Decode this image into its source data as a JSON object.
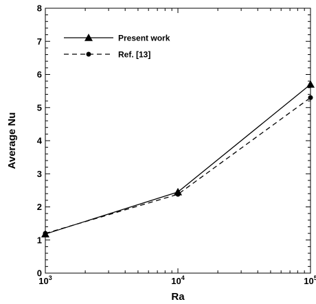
{
  "chart_data": {
    "type": "line",
    "title": "",
    "xlabel": "Ra",
    "ylabel": "Average Nu",
    "x_scale": "log",
    "xlim": [
      1000,
      100000
    ],
    "ylim": [
      0,
      8
    ],
    "x_ticks": [
      {
        "value": 1000,
        "base": "10",
        "exp": "3"
      },
      {
        "value": 10000,
        "base": "10",
        "exp": "4"
      },
      {
        "value": 100000,
        "base": "10",
        "exp": "5"
      }
    ],
    "y_ticks": [
      0,
      1,
      2,
      3,
      4,
      5,
      6,
      7,
      8
    ],
    "grid": false,
    "legend_position": "top-left",
    "series": [
      {
        "name": "Present work",
        "line_style": "solid",
        "marker": "triangle",
        "x": [
          1000,
          10000,
          100000
        ],
        "y": [
          1.18,
          2.45,
          5.7
        ]
      },
      {
        "name": "Ref. [13]",
        "line_style": "dashed",
        "marker": "circle",
        "x": [
          1000,
          10000,
          100000
        ],
        "y": [
          1.2,
          2.38,
          5.3
        ]
      }
    ]
  }
}
